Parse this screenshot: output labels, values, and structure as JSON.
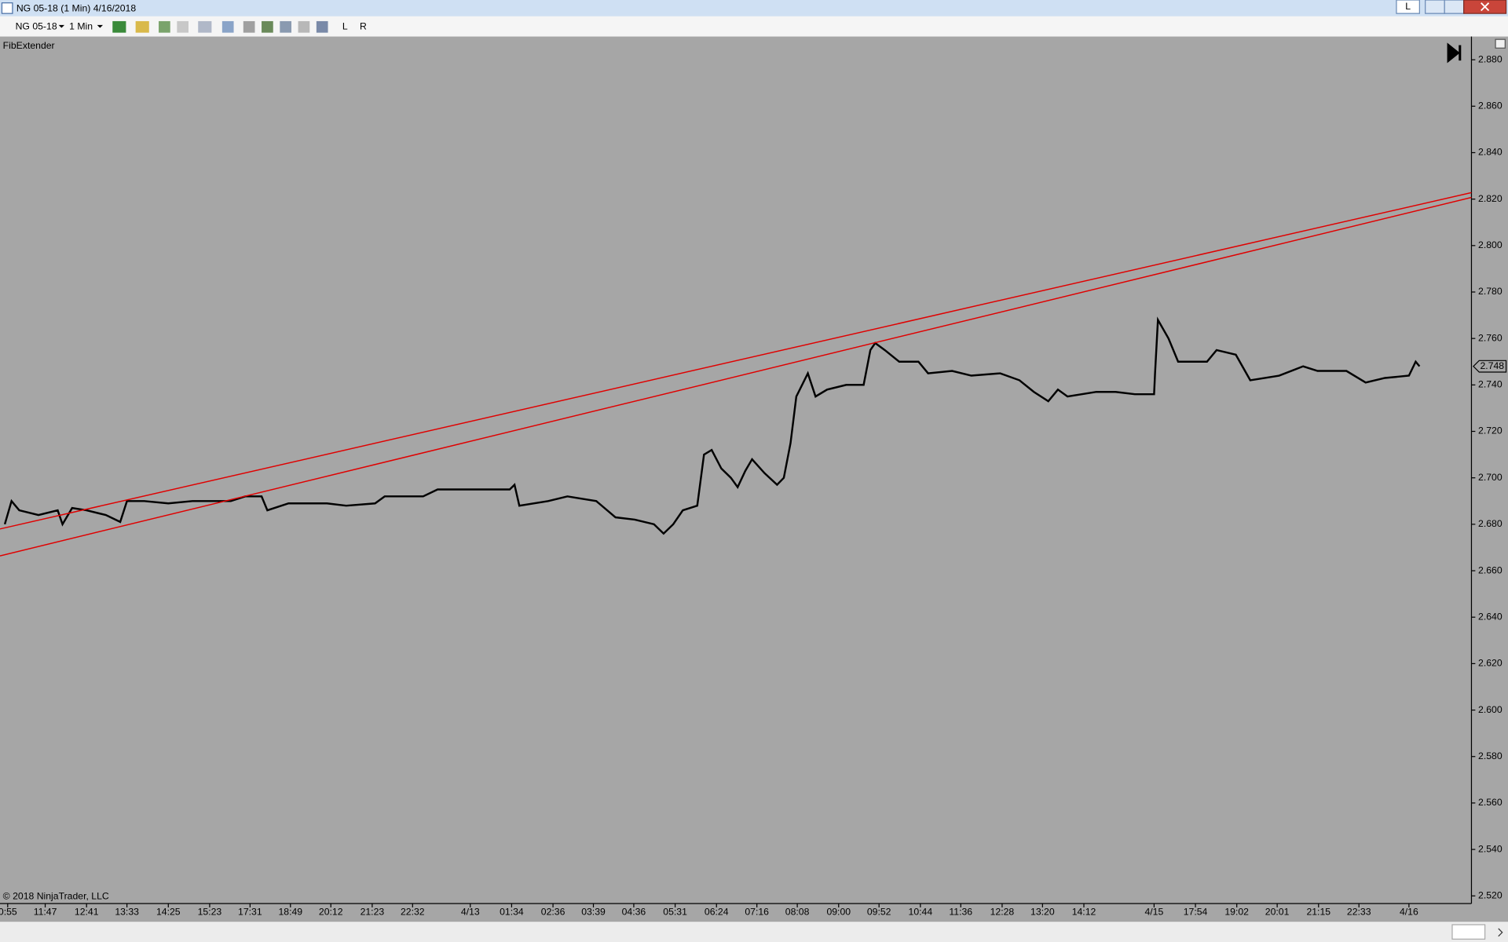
{
  "window": {
    "title": "NG 05-18 (1 Min)  4/16/2018",
    "button": "L"
  },
  "toolbar": {
    "instrument": "NG 05-18",
    "interval": "1 Min",
    "buttons": [
      "L",
      "R"
    ]
  },
  "chart_data": {
    "type": "line",
    "indicator": "FibExtender",
    "copyright": "© 2018 NinjaTrader, LLC",
    "last_price": 2.748,
    "xlim": [
      0,
      1530
    ],
    "ylim": [
      2.5167,
      2.89
    ],
    "yticks": [
      {
        "value": 2.52,
        "label": "2.520"
      },
      {
        "value": 2.54,
        "label": "2.540"
      },
      {
        "value": 2.56,
        "label": "2.560"
      },
      {
        "value": 2.58,
        "label": "2.580"
      },
      {
        "value": 2.6,
        "label": "2.600"
      },
      {
        "value": 2.62,
        "label": "2.620"
      },
      {
        "value": 2.64,
        "label": "2.640"
      },
      {
        "value": 2.66,
        "label": "2.660"
      },
      {
        "value": 2.68,
        "label": "2.680"
      },
      {
        "value": 2.7,
        "label": "2.700"
      },
      {
        "value": 2.72,
        "label": "2.720"
      },
      {
        "value": 2.74,
        "label": "2.740"
      },
      {
        "value": 2.76,
        "label": "2.760"
      },
      {
        "value": 2.78,
        "label": "2.780"
      },
      {
        "value": 2.8,
        "label": "2.800"
      },
      {
        "value": 2.82,
        "label": "2.820"
      },
      {
        "value": 2.84,
        "label": "2.840"
      },
      {
        "value": 2.86,
        "label": "2.860"
      },
      {
        "value": 2.88,
        "label": "2.880"
      }
    ],
    "xticks": [
      {
        "value": 8,
        "label": "0:55"
      },
      {
        "value": 47,
        "label": "11:47"
      },
      {
        "value": 90,
        "label": "12:41"
      },
      {
        "value": 132,
        "label": "13:33"
      },
      {
        "value": 175,
        "label": "14:25"
      },
      {
        "value": 218,
        "label": "15:23"
      },
      {
        "value": 260,
        "label": "17:31"
      },
      {
        "value": 302,
        "label": "18:49"
      },
      {
        "value": 344,
        "label": "20:12"
      },
      {
        "value": 387,
        "label": "21:23"
      },
      {
        "value": 429,
        "label": "22:32"
      },
      {
        "value": 489,
        "label": "4/13"
      },
      {
        "value": 532,
        "label": "01:34"
      },
      {
        "value": 575,
        "label": "02:36"
      },
      {
        "value": 617,
        "label": "03:39"
      },
      {
        "value": 659,
        "label": "04:36"
      },
      {
        "value": 702,
        "label": "05:31"
      },
      {
        "value": 745,
        "label": "06:24"
      },
      {
        "value": 787,
        "label": "07:16"
      },
      {
        "value": 829,
        "label": "08:08"
      },
      {
        "value": 872,
        "label": "09:00"
      },
      {
        "value": 914,
        "label": "09:52"
      },
      {
        "value": 957,
        "label": "10:44"
      },
      {
        "value": 999,
        "label": "11:36"
      },
      {
        "value": 1042,
        "label": "12:28"
      },
      {
        "value": 1084,
        "label": "13:20"
      },
      {
        "value": 1127,
        "label": "14:12"
      },
      {
        "value": 1200,
        "label": "4/15"
      },
      {
        "value": 1243,
        "label": "17:54"
      },
      {
        "value": 1286,
        "label": "19:02"
      },
      {
        "value": 1328,
        "label": "20:01"
      },
      {
        "value": 1371,
        "label": "21:15"
      },
      {
        "value": 1413,
        "label": "22:33"
      },
      {
        "value": 1465,
        "label": "4/16"
      }
    ],
    "series": [
      {
        "color": "#000000",
        "x": [
          5,
          12,
          20,
          40,
          60,
          65,
          75,
          90,
          110,
          125,
          132,
          150,
          175,
          200,
          240,
          255,
          272,
          278,
          300,
          340,
          360,
          390,
          400,
          440,
          455,
          475,
          530,
          535,
          540,
          570,
          590,
          620,
          640,
          660,
          680,
          690,
          700,
          710,
          725,
          732,
          740,
          750,
          760,
          767,
          775,
          782,
          795,
          808,
          815,
          822,
          828,
          840,
          848,
          860,
          880,
          898,
          905,
          910,
          920,
          935,
          955,
          965,
          990,
          1010,
          1040,
          1060,
          1075,
          1090,
          1100,
          1110,
          1140,
          1160,
          1180,
          1200,
          1201,
          1204,
          1215,
          1225,
          1255,
          1265,
          1285,
          1300,
          1330,
          1355,
          1370,
          1400,
          1420,
          1440,
          1465,
          1472,
          1476
        ],
        "values": [
          2.68,
          2.69,
          2.686,
          2.684,
          2.686,
          2.68,
          2.687,
          2.686,
          2.684,
          2.681,
          2.69,
          2.69,
          2.689,
          2.69,
          2.69,
          2.692,
          2.692,
          2.686,
          2.689,
          2.689,
          2.688,
          2.689,
          2.692,
          2.692,
          2.695,
          2.695,
          2.695,
          2.697,
          2.688,
          2.69,
          2.692,
          2.69,
          2.683,
          2.682,
          2.68,
          2.676,
          2.68,
          2.686,
          2.688,
          2.71,
          2.712,
          2.704,
          2.7,
          2.696,
          2.703,
          2.708,
          2.702,
          2.697,
          2.7,
          2.715,
          2.735,
          2.745,
          2.735,
          2.738,
          2.74,
          2.74,
          2.755,
          2.758,
          2.755,
          2.75,
          2.75,
          2.745,
          2.746,
          2.744,
          2.745,
          2.742,
          2.737,
          2.733,
          2.738,
          2.735,
          2.737,
          2.737,
          2.736,
          2.736,
          2.745,
          2.768,
          2.76,
          2.75,
          2.75,
          2.755,
          2.753,
          2.742,
          2.744,
          2.748,
          2.746,
          2.746,
          2.741,
          2.743,
          2.744,
          2.75,
          2.748
        ]
      },
      {
        "color": "#e00000",
        "x": [
          0,
          1530
        ],
        "values": [
          2.678,
          2.8228
        ]
      },
      {
        "color": "#e00000",
        "x": [
          0,
          1530
        ],
        "values": [
          2.6664,
          2.8207
        ]
      }
    ]
  }
}
